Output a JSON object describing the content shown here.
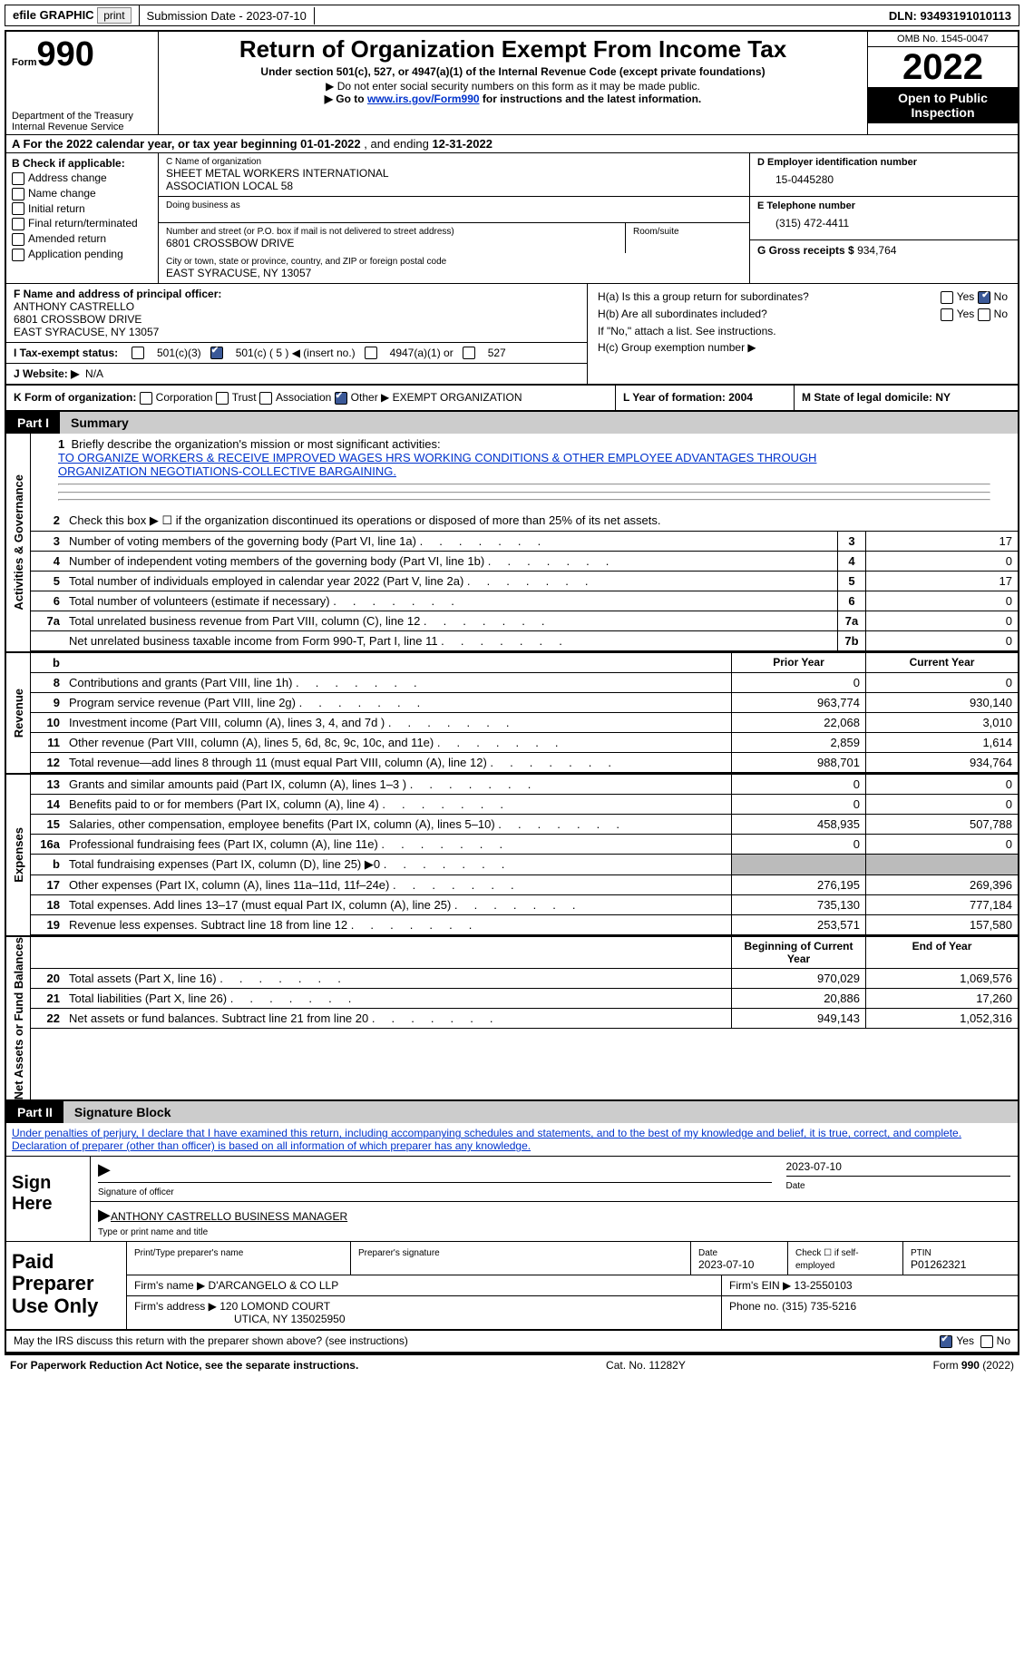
{
  "topbar": {
    "efile": "efile GRAPHIC",
    "print": "print",
    "submission": "Submission Date - 2023-07-10",
    "dln": "DLN: 93493191010113"
  },
  "header": {
    "form_prefix": "Form",
    "form_num": "990",
    "title": "Return of Organization Exempt From Income Tax",
    "sub": "Under section 501(c), 527, or 4947(a)(1) of the Internal Revenue Code (except private foundations)",
    "note1": "▶ Do not enter social security numbers on this form as it may be made public.",
    "note2_prefix": "▶ Go to ",
    "note2_link": "www.irs.gov/Form990",
    "note2_suffix": " for instructions and the latest information.",
    "dept": "Department of the Treasury",
    "irs": "Internal Revenue Service",
    "omb": "OMB No. 1545-0047",
    "year": "2022",
    "open": "Open to Public Inspection"
  },
  "rowA": {
    "prefix": "A For the 2022 calendar year, or tax year beginning ",
    "begin": "01-01-2022",
    "mid": " , and ending ",
    "end": "12-31-2022"
  },
  "B": {
    "title": "B Check if applicable:",
    "opts": [
      "Address change",
      "Name change",
      "Initial return",
      "Final return/terminated",
      "Amended return",
      "Application pending"
    ]
  },
  "C": {
    "lbl": "C Name of organization",
    "name1": "SHEET METAL WORKERS INTERNATIONAL",
    "name2": "ASSOCIATION LOCAL 58",
    "dba_lbl": "Doing business as",
    "addr_lbl": "Number and street (or P.O. box if mail is not delivered to street address)",
    "room_lbl": "Room/suite",
    "addr": "6801 CROSSBOW DRIVE",
    "city_lbl": "City or town, state or province, country, and ZIP or foreign postal code",
    "city": "EAST SYRACUSE, NY  13057"
  },
  "D": {
    "lbl": "D Employer identification number",
    "ein": "15-0445280",
    "E_lbl": "E Telephone number",
    "phone": "(315) 472-4411",
    "G_lbl": "G Gross receipts $",
    "gross": "934,764"
  },
  "F": {
    "lbl": "F Name and address of principal officer:",
    "name": "ANTHONY CASTRELLO",
    "addr1": "6801 CROSSBOW DRIVE",
    "addr2": "EAST SYRACUSE, NY  13057",
    "I_lbl": "I Tax-exempt status:",
    "c3": "501(c)(3)",
    "c5a": "501(c) (",
    "c5n": "5",
    "c5b": ") ◀ (insert no.)",
    "c4947": "4947(a)(1) or",
    "c527": "527",
    "J_lbl": "J  Website: ▶",
    "website": "N/A"
  },
  "H": {
    "a": "H(a)  Is this a group return for subordinates?",
    "b": "H(b)  Are all subordinates included?",
    "note": "If \"No,\" attach a list. See instructions.",
    "c": "H(c)  Group exemption number ▶",
    "yes": "Yes",
    "no": "No"
  },
  "K": {
    "lbl": "K Form of organization:",
    "corp": "Corporation",
    "trust": "Trust",
    "assoc": "Association",
    "other": "Other ▶",
    "other_val": "EXEMPT ORGANIZATION",
    "L": "L Year of formation: 2004",
    "M": "M State of legal domicile: NY"
  },
  "part1": {
    "num": "Part I",
    "title": "Summary"
  },
  "summary": {
    "q1": "Briefly describe the organization's mission or most significant activities:",
    "mission1": "TO ORGANIZE WORKERS & RECEIVE IMPROVED WAGES HRS WORKING CONDITIONS & OTHER EMPLOYEE ADVANTAGES THROUGH",
    "mission2": "ORGANIZATION NEGOTIATIONS-COLLECTIVE BARGAINING.",
    "q2": "Check this box ▶ ☐ if the organization discontinued its operations or disposed of more than 25% of its net assets.",
    "lines_ag": [
      {
        "n": "3",
        "d": "Number of voting members of the governing body (Part VI, line 1a)",
        "ln": "3",
        "v": "17"
      },
      {
        "n": "4",
        "d": "Number of independent voting members of the governing body (Part VI, line 1b)",
        "ln": "4",
        "v": "0"
      },
      {
        "n": "5",
        "d": "Total number of individuals employed in calendar year 2022 (Part V, line 2a)",
        "ln": "5",
        "v": "17"
      },
      {
        "n": "6",
        "d": "Total number of volunteers (estimate if necessary)",
        "ln": "6",
        "v": "0"
      },
      {
        "n": "7a",
        "d": "Total unrelated business revenue from Part VIII, column (C), line 12",
        "ln": "7a",
        "v": "0"
      },
      {
        "n": "",
        "d": "Net unrelated business taxable income from Form 990-T, Part I, line 11",
        "ln": "7b",
        "v": "0"
      }
    ],
    "prior_hdr": "Prior Year",
    "curr_hdr": "Current Year",
    "rev": [
      {
        "n": "8",
        "d": "Contributions and grants (Part VIII, line 1h)",
        "p": "0",
        "c": "0"
      },
      {
        "n": "9",
        "d": "Program service revenue (Part VIII, line 2g)",
        "p": "963,774",
        "c": "930,140"
      },
      {
        "n": "10",
        "d": "Investment income (Part VIII, column (A), lines 3, 4, and 7d )",
        "p": "22,068",
        "c": "3,010"
      },
      {
        "n": "11",
        "d": "Other revenue (Part VIII, column (A), lines 5, 6d, 8c, 9c, 10c, and 11e)",
        "p": "2,859",
        "c": "1,614"
      },
      {
        "n": "12",
        "d": "Total revenue—add lines 8 through 11 (must equal Part VIII, column (A), line 12)",
        "p": "988,701",
        "c": "934,764"
      }
    ],
    "exp": [
      {
        "n": "13",
        "d": "Grants and similar amounts paid (Part IX, column (A), lines 1–3 )",
        "p": "0",
        "c": "0"
      },
      {
        "n": "14",
        "d": "Benefits paid to or for members (Part IX, column (A), line 4)",
        "p": "0",
        "c": "0"
      },
      {
        "n": "15",
        "d": "Salaries, other compensation, employee benefits (Part IX, column (A), lines 5–10)",
        "p": "458,935",
        "c": "507,788"
      },
      {
        "n": "16a",
        "d": "Professional fundraising fees (Part IX, column (A), line 11e)",
        "p": "0",
        "c": "0"
      },
      {
        "n": "b",
        "d": "Total fundraising expenses (Part IX, column (D), line 25) ▶0",
        "p": "",
        "c": "",
        "grey": true
      },
      {
        "n": "17",
        "d": "Other expenses (Part IX, column (A), lines 11a–11d, 11f–24e)",
        "p": "276,195",
        "c": "269,396"
      },
      {
        "n": "18",
        "d": "Total expenses. Add lines 13–17 (must equal Part IX, column (A), line 25)",
        "p": "735,130",
        "c": "777,184"
      },
      {
        "n": "19",
        "d": "Revenue less expenses. Subtract line 18 from line 12",
        "p": "253,571",
        "c": "157,580"
      }
    ],
    "na_hdr1": "Beginning of Current Year",
    "na_hdr2": "End of Year",
    "na": [
      {
        "n": "20",
        "d": "Total assets (Part X, line 16)",
        "p": "970,029",
        "c": "1,069,576"
      },
      {
        "n": "21",
        "d": "Total liabilities (Part X, line 26)",
        "p": "20,886",
        "c": "17,260"
      },
      {
        "n": "22",
        "d": "Net assets or fund balances. Subtract line 21 from line 20",
        "p": "949,143",
        "c": "1,052,316"
      }
    ],
    "vtab_ag": "Activities & Governance",
    "vtab_rev": "Revenue",
    "vtab_exp": "Expenses",
    "vtab_na": "Net Assets or Fund Balances"
  },
  "part2": {
    "num": "Part II",
    "title": "Signature Block"
  },
  "decl": "Under penalties of perjury, I declare that I have examined this return, including accompanying schedules and statements, and to the best of my knowledge and belief, it is true, correct, and complete. Declaration of preparer (other than officer) is based on all information of which preparer has any knowledge.",
  "sign": {
    "here": "Sign Here",
    "sig_lbl": "Signature of officer",
    "date": "2023-07-10",
    "date_lbl": "Date",
    "name": "ANTHONY CASTRELLO  BUSINESS MANAGER",
    "name_lbl": "Type or print name and title"
  },
  "prep": {
    "lbl": "Paid Preparer Use Only",
    "pt_name_lbl": "Print/Type preparer's name",
    "pt_sig_lbl": "Preparer's signature",
    "pt_date_lbl": "Date",
    "pt_date": "2023-07-10",
    "self_lbl": "Check ☐ if self-employed",
    "ptin_lbl": "PTIN",
    "ptin": "P01262321",
    "firm_name_lbl": "Firm's name    ▶",
    "firm_name": "D'ARCANGELO & CO LLP",
    "firm_ein_lbl": "Firm's EIN ▶",
    "firm_ein": "13-2550103",
    "firm_addr_lbl": "Firm's address ▶",
    "firm_addr1": "120 LOMOND COURT",
    "firm_addr2": "UTICA, NY  135025950",
    "phone_lbl": "Phone no.",
    "phone": "(315) 735-5216",
    "discuss": "May the IRS discuss this return with the preparer shown above? (see instructions)"
  },
  "foot": {
    "pra": "For Paperwork Reduction Act Notice, see the separate instructions.",
    "cat": "Cat. No. 11282Y",
    "form": "Form 990 (2022)"
  }
}
